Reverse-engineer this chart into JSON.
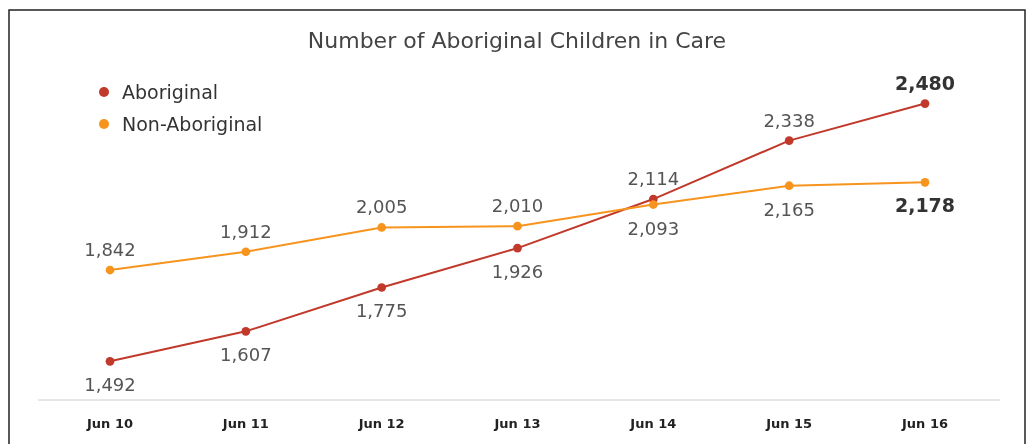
{
  "chart_data": {
    "type": "line",
    "title": "Number of Aboriginal Children in Care",
    "categories": [
      "Jun 10",
      "Jun 11",
      "Jun 12",
      "Jun 13",
      "Jun 14",
      "Jun 15",
      "Jun 16"
    ],
    "series": [
      {
        "name": "Aboriginal",
        "color": "#c0392b",
        "values": [
          1492,
          1607,
          1775,
          1926,
          2114,
          2338,
          2480
        ],
        "value_labels": [
          "1,492",
          "1,607",
          "1,775",
          "1,926",
          "2,114",
          "2,338",
          "2,480"
        ]
      },
      {
        "name": "Non-Aboriginal",
        "color": "#f7941d",
        "values": [
          1842,
          1912,
          2005,
          2010,
          2093,
          2165,
          2178
        ],
        "value_labels": [
          "1,842",
          "1,912",
          "2,005",
          "2,010",
          "2,093",
          "2,165",
          "2,178"
        ]
      }
    ],
    "legend": "top left",
    "marker": "circle"
  }
}
